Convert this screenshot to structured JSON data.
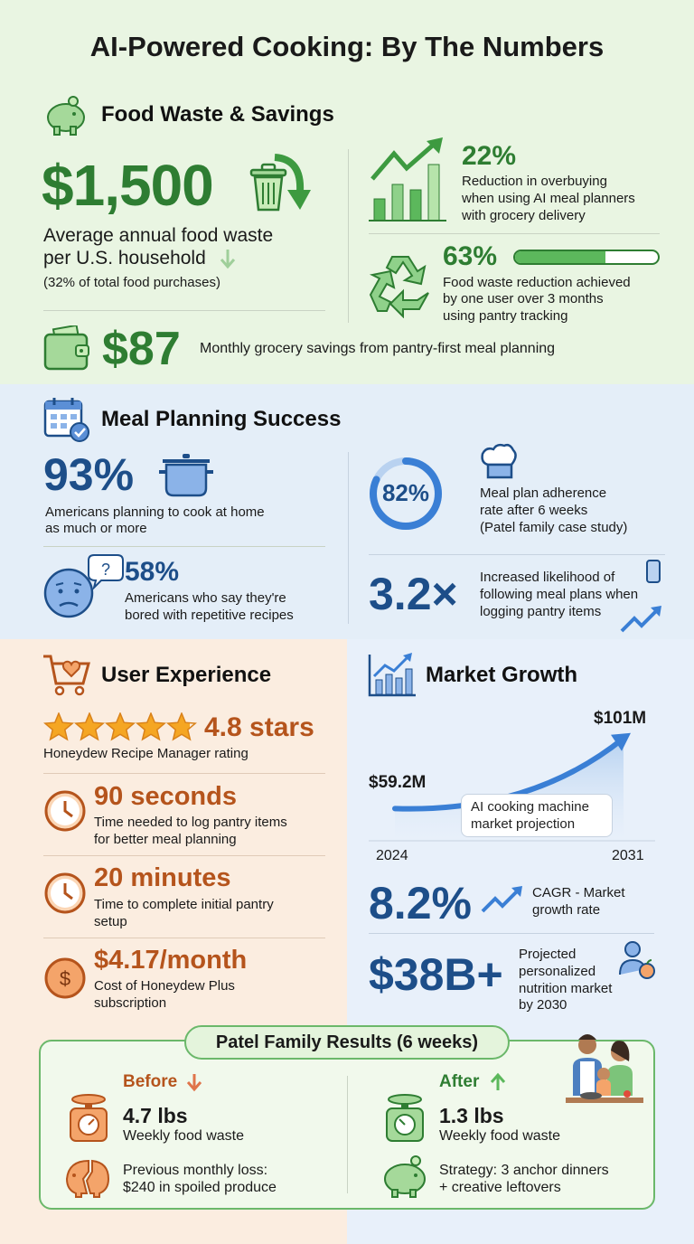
{
  "title": "AI-Powered Cooking: By The Numbers",
  "colors": {
    "green": "#2e7d32",
    "blue": "#1d4e89",
    "orange": "#b5541c",
    "accent_blue": "#3a7fd5"
  },
  "food_waste": {
    "header": "Food Waste & Savings",
    "icon": "piggy-bank-icon",
    "annual": {
      "value": "$1,500",
      "line1": "Average annual food waste",
      "line2": "per U.S. household",
      "note": "(32% of total food purchases)"
    },
    "overbuying": {
      "value": "22%",
      "lines": [
        "Reduction in overbuying",
        "when using AI meal planners",
        "with grocery delivery"
      ]
    },
    "reduction": {
      "value": "63%",
      "progress_percent": 63,
      "lines": [
        "Food waste reduction achieved",
        "by one user over 3 months",
        "using pantry tracking"
      ]
    },
    "savings": {
      "value": "$87",
      "text": "Monthly grocery savings from pantry-first meal planning"
    }
  },
  "meal_planning": {
    "header": "Meal Planning Success",
    "cook_home": {
      "value": "93%",
      "lines": [
        "Americans planning to cook at home",
        "as much or more"
      ]
    },
    "bored": {
      "value": "58%",
      "lines": [
        "Americans who say they're",
        "bored with repetitive recipes"
      ]
    },
    "adherence": {
      "value": "82%",
      "ring_percent": 82,
      "lines": [
        "Meal plan adherence",
        "rate after 6 weeks",
        "(Patel family case study)"
      ]
    },
    "likelihood": {
      "value": "3.2×",
      "lines": [
        "Increased likelihood of",
        "following meal plans when",
        "logging pantry items"
      ]
    }
  },
  "user_experience": {
    "header": "User Experience",
    "rating": {
      "stars": 4.8,
      "value": "4.8 stars",
      "label": "Honeydew Recipe Manager rating"
    },
    "items": [
      {
        "value": "90 seconds",
        "lines": [
          "Time needed to log pantry items",
          "for better meal planning"
        ],
        "icon": "clock-icon"
      },
      {
        "value": "20 minutes",
        "lines": [
          "Time to complete initial pantry",
          "setup"
        ],
        "icon": "clock-icon"
      },
      {
        "value": "$4.17/month",
        "lines": [
          "Cost of Honeydew Plus",
          "subscription"
        ],
        "icon": "dollar-icon"
      }
    ]
  },
  "market": {
    "header": "Market Growth",
    "chart_data": {
      "type": "line",
      "x": [
        2024,
        2031
      ],
      "values": [
        59.2,
        101
      ],
      "labels": [
        "$59.2M",
        "$101M"
      ],
      "tick_labels": [
        "2024",
        "2031"
      ],
      "annotation": "AI cooking machine market projection"
    },
    "annotation_lines": [
      "AI cooking machine",
      "market projection"
    ],
    "cagr": {
      "value": "8.2%",
      "lines": [
        "CAGR - Market",
        "growth rate"
      ]
    },
    "nutrition": {
      "value": "$38B+",
      "lines": [
        "Projected",
        "personalized",
        "nutrition market",
        "by 2030"
      ]
    }
  },
  "patel": {
    "title": "Patel Family Results (6 weeks)",
    "before": {
      "label": "Before",
      "value": "4.7 lbs",
      "sub": "Weekly food waste",
      "lines": [
        "Previous monthly loss:",
        "$240 in spoiled produce"
      ]
    },
    "after": {
      "label": "After",
      "value": "1.3 lbs",
      "sub": "Weekly food waste",
      "lines": [
        "Strategy: 3 anchor dinners",
        "+ creative leftovers"
      ]
    }
  }
}
